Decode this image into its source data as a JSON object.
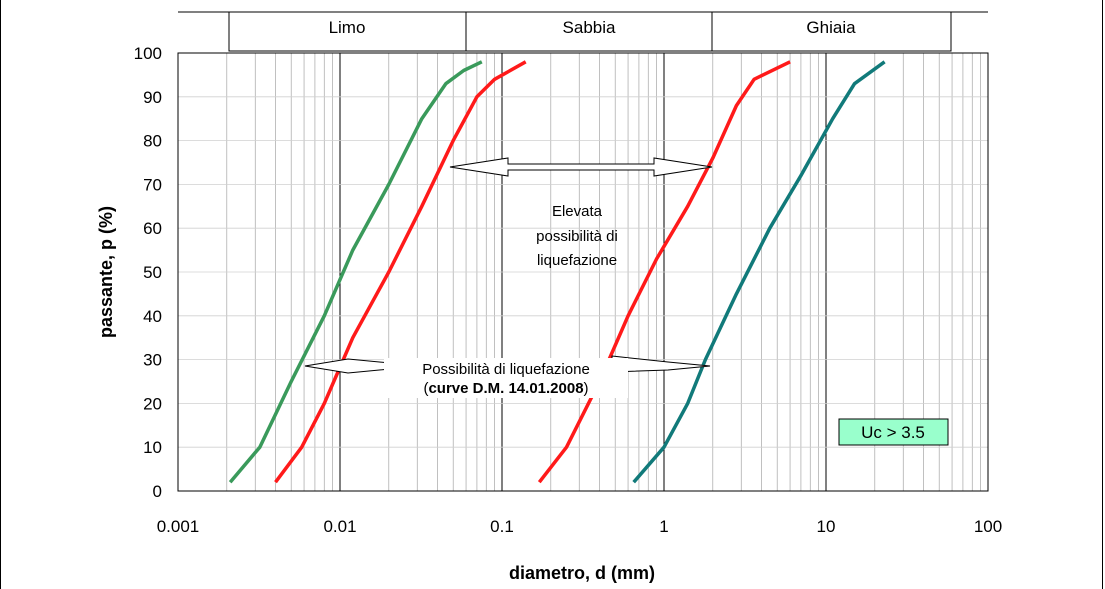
{
  "chart_data": {
    "type": "line",
    "x_scale": "log",
    "xlabel": "diametro, d (mm)",
    "ylabel": "passante, p (%)",
    "xlim": [
      0.001,
      100
    ],
    "ylim": [
      0,
      100
    ],
    "grid": true,
    "x_ticks": [
      0.001,
      0.01,
      0.1,
      1,
      10,
      100
    ],
    "x_tick_labels": [
      "0.001",
      "0.01",
      "0.1",
      "1",
      "10",
      "100"
    ],
    "y_ticks": [
      0,
      10,
      20,
      30,
      40,
      50,
      60,
      70,
      80,
      90,
      100
    ],
    "y_tick_labels": [
      "0",
      "10",
      "20",
      "30",
      "40",
      "50",
      "60",
      "70",
      "80",
      "90",
      "100"
    ],
    "zones": [
      "Limo",
      "Sabbia",
      "Ghiaia"
    ],
    "series": [
      {
        "color": "#3a9a5b",
        "points": [
          [
            0.0021,
            2
          ],
          [
            0.0032,
            10
          ],
          [
            0.005,
            25
          ],
          [
            0.008,
            40
          ],
          [
            0.012,
            55
          ],
          [
            0.02,
            70
          ],
          [
            0.032,
            85
          ],
          [
            0.045,
            93
          ],
          [
            0.058,
            96
          ],
          [
            0.075,
            98
          ]
        ]
      },
      {
        "color": "#ff1a1a",
        "points": [
          [
            0.004,
            2
          ],
          [
            0.0058,
            10
          ],
          [
            0.008,
            20
          ],
          [
            0.012,
            35
          ],
          [
            0.02,
            50
          ],
          [
            0.032,
            65
          ],
          [
            0.05,
            80
          ],
          [
            0.07,
            90
          ],
          [
            0.09,
            94
          ],
          [
            0.14,
            98
          ]
        ]
      },
      {
        "color": "#ff1a1a",
        "points": [
          [
            0.17,
            2
          ],
          [
            0.25,
            10
          ],
          [
            0.4,
            25
          ],
          [
            0.6,
            40
          ],
          [
            0.9,
            53
          ],
          [
            1.4,
            65
          ],
          [
            2.0,
            76
          ],
          [
            2.8,
            88
          ],
          [
            3.6,
            94
          ],
          [
            6.0,
            98
          ]
        ]
      },
      {
        "color": "#117a7a",
        "points": [
          [
            0.65,
            2
          ],
          [
            1.0,
            10
          ],
          [
            1.4,
            20
          ],
          [
            1.8,
            30
          ],
          [
            2.8,
            45
          ],
          [
            4.5,
            60
          ],
          [
            7.0,
            72
          ],
          [
            11.0,
            85
          ],
          [
            15.0,
            93
          ],
          [
            23.0,
            98
          ]
        ]
      }
    ],
    "annotations": [
      {
        "lines": [
          "Elevata",
          "possibilità di",
          "liquefazione"
        ]
      },
      {
        "line1": "Possibilità di liquefazione",
        "line2_open": "(",
        "line2_bold": "curve D.M. 14.01.2008",
        "line2_close": ")"
      }
    ],
    "uc_label": "Uc > 3.5",
    "uc_box_fill": "#99ffcc"
  }
}
